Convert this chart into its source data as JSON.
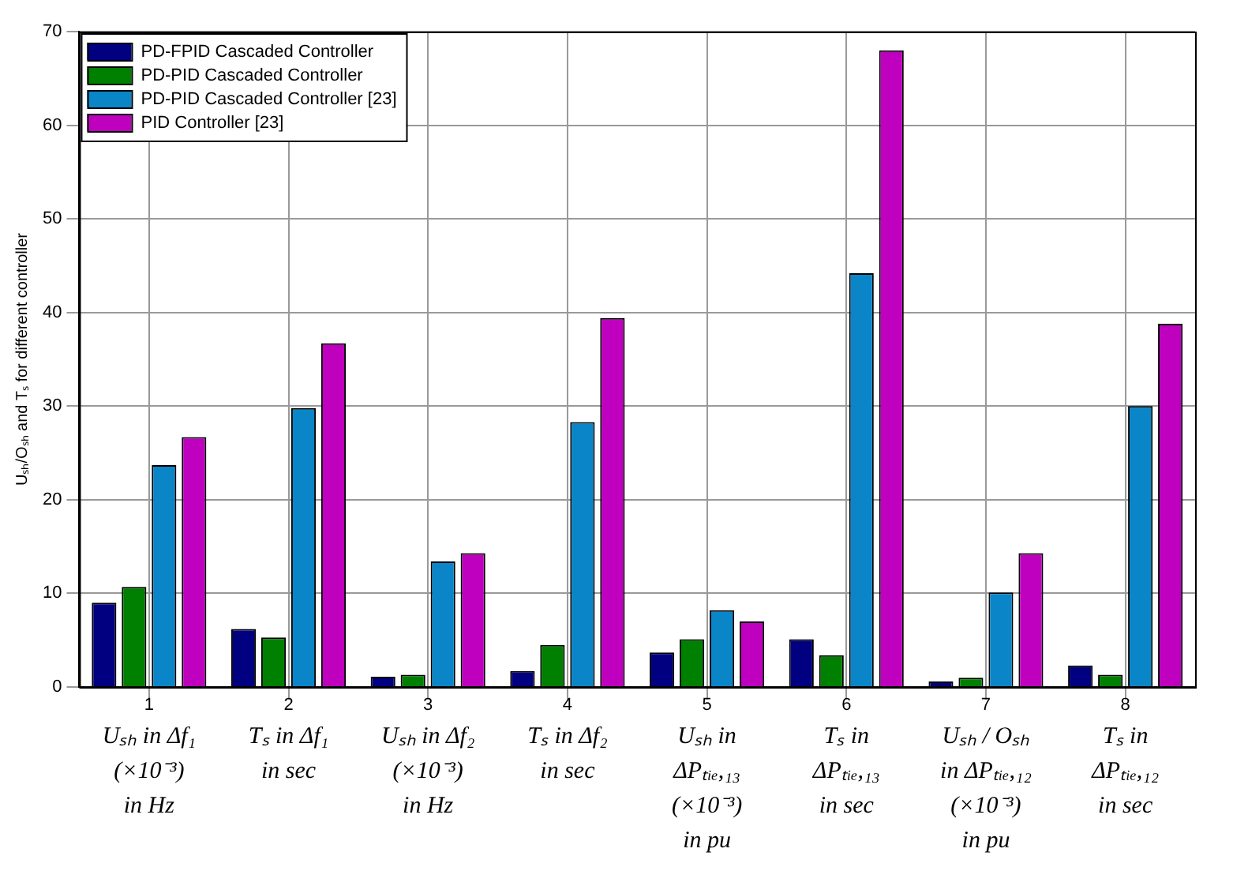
{
  "chart_data": {
    "type": "bar",
    "ylabel": "Uₛₕ/Oₛₕ and Tₛ for different controller",
    "categories": [
      "1\nUₛₕ in Δf₁\n(×10⁻³)\nin Hz",
      "2\nTₛ in Δf₁\nin sec",
      "3\nUₛₕ in Δf₂\n(×10⁻³)\nin Hz",
      "4\nTₛ in Δf₂\nin sec",
      "5\nUₛₕ in\nΔPₜᵢₑ,₁₃\n(×10⁻³)\nin pu",
      "6\nTₛ in\nΔPₜᵢₑ,₁₃\nin sec",
      "7\nUₛₕ / Oₛₕ\nin ΔPₜᵢₑ,₁₂\n(×10⁻³)\nin pu",
      "8\nTₛ in\nΔPₜᵢₑ,₁₂\nin sec"
    ],
    "series": [
      {
        "name": "PD-FPID Cascaded Controller",
        "color": "#000080",
        "values": [
          9.0,
          6.2,
          1.1,
          1.7,
          3.7,
          5.1,
          0.6,
          2.3
        ]
      },
      {
        "name": "PD-PID Cascaded Controller",
        "color": "#008000",
        "values": [
          10.7,
          5.3,
          1.3,
          4.5,
          5.1,
          3.4,
          1.0,
          1.3
        ]
      },
      {
        "name": "PD-PID Cascaded Controller [23]",
        "color": "#0a85c8",
        "values": [
          23.7,
          29.8,
          13.4,
          28.3,
          8.2,
          44.2,
          10.1,
          30.0
        ]
      },
      {
        "name": "PID Controller [23]",
        "color": "#bf00bf",
        "values": [
          26.7,
          36.7,
          14.3,
          39.4,
          7.0,
          68.0,
          14.3,
          38.8
        ]
      }
    ],
    "ylim": [
      0,
      70
    ],
    "yticks": [
      0,
      10,
      20,
      30,
      40,
      50,
      60,
      70
    ],
    "grid": true,
    "legend": "top left"
  }
}
